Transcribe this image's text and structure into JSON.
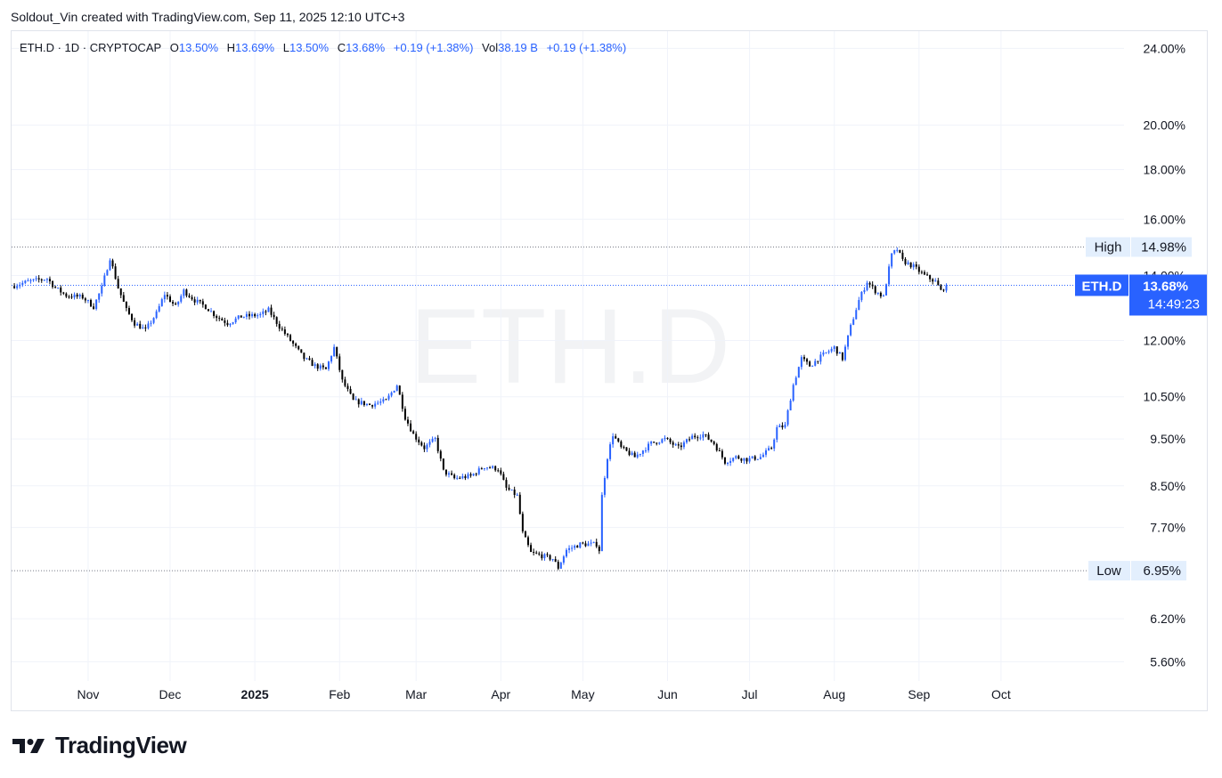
{
  "credit": "Soldout_Vin created with TradingView.com, Sep 11, 2025 12:10 UTC+3",
  "legend": {
    "symbol": "ETH.D · 1D · CRYPTOCAP",
    "open_label": "O",
    "open": "13.50%",
    "high_label": "H",
    "high": "13.69%",
    "low_label": "L",
    "low": "13.50%",
    "close_label": "C",
    "close": "13.68%",
    "change": "+0.19 (+1.38%)",
    "vol_label": "Vol",
    "vol": "38.19 B",
    "vol_change": "+0.19 (+1.38%)"
  },
  "watermark": "ETH.D",
  "brand": "TradingView",
  "colors": {
    "up": "#2962ff",
    "down": "#000000",
    "accent": "#2962ff",
    "grid": "#f0f3fa",
    "label_bg": "#e3effd"
  },
  "chart_data": {
    "type": "candlestick",
    "series_name": "ETH.D",
    "y_scale": "log",
    "y_ticks": [
      "24.00%",
      "20.00%",
      "18.00%",
      "16.00%",
      "14.00%",
      "12.00%",
      "10.50%",
      "9.50%",
      "8.50%",
      "7.70%",
      "6.20%",
      "5.60%"
    ],
    "y_tick_values": [
      24.0,
      20.0,
      18.0,
      16.0,
      14.0,
      12.0,
      10.5,
      9.5,
      8.5,
      7.7,
      6.2,
      5.6
    ],
    "x_ticks": [
      "Nov",
      "Dec",
      "2025",
      "Feb",
      "Mar",
      "Apr",
      "May",
      "Jun",
      "Jul",
      "Aug",
      "Sep",
      "Oct"
    ],
    "x_tick_dates": [
      "2024-11-01",
      "2024-12-01",
      "2025-01-01",
      "2025-02-01",
      "2025-03-01",
      "2025-04-01",
      "2025-05-01",
      "2025-06-01",
      "2025-07-01",
      "2025-08-01",
      "2025-09-01",
      "2025-10-01"
    ],
    "x_range": [
      "2024-10-04",
      "2025-11-15"
    ],
    "y_range": [
      5.35,
      25.0
    ],
    "high": {
      "label": "High",
      "value": 14.98,
      "text": "14.98%"
    },
    "low": {
      "label": "Low",
      "value": 6.95,
      "text": "6.95%"
    },
    "last": {
      "label": "ETH.D",
      "value": 13.68,
      "text": "13.68%",
      "countdown": "14:49:23"
    },
    "close_path": [
      [
        "2024-10-04",
        13.65
      ],
      [
        "2024-10-10",
        13.8
      ],
      [
        "2024-10-17",
        13.9
      ],
      [
        "2024-10-20",
        13.6
      ],
      [
        "2024-10-24",
        13.35
      ],
      [
        "2024-10-30",
        13.3
      ],
      [
        "2024-11-03",
        13.0
      ],
      [
        "2024-11-06",
        13.6
      ],
      [
        "2024-11-09",
        14.6
      ],
      [
        "2024-11-12",
        13.6
      ],
      [
        "2024-11-15",
        12.9
      ],
      [
        "2024-11-18",
        12.5
      ],
      [
        "2024-11-22",
        12.3
      ],
      [
        "2024-11-26",
        12.8
      ],
      [
        "2024-11-29",
        13.4
      ],
      [
        "2024-12-03",
        13.0
      ],
      [
        "2024-12-06",
        13.5
      ],
      [
        "2024-12-10",
        13.2
      ],
      [
        "2024-12-14",
        13.0
      ],
      [
        "2024-12-18",
        12.7
      ],
      [
        "2024-12-22",
        12.5
      ],
      [
        "2024-12-27",
        12.7
      ],
      [
        "2025-01-03",
        12.75
      ],
      [
        "2025-01-06",
        12.9
      ],
      [
        "2025-01-10",
        12.4
      ],
      [
        "2025-01-15",
        11.9
      ],
      [
        "2025-01-19",
        11.5
      ],
      [
        "2025-01-23",
        11.3
      ],
      [
        "2025-01-27",
        11.2
      ],
      [
        "2025-01-30",
        11.8
      ],
      [
        "2025-02-02",
        10.9
      ],
      [
        "2025-02-06",
        10.4
      ],
      [
        "2025-02-12",
        10.3
      ],
      [
        "2025-02-18",
        10.4
      ],
      [
        "2025-02-22",
        10.8
      ],
      [
        "2025-02-25",
        10.0
      ],
      [
        "2025-02-28",
        9.6
      ],
      [
        "2025-03-04",
        9.3
      ],
      [
        "2025-03-08",
        9.5
      ],
      [
        "2025-03-11",
        8.8
      ],
      [
        "2025-03-15",
        8.65
      ],
      [
        "2025-03-21",
        8.7
      ],
      [
        "2025-03-26",
        8.9
      ],
      [
        "2025-03-31",
        8.85
      ],
      [
        "2025-04-03",
        8.45
      ],
      [
        "2025-04-07",
        8.3
      ],
      [
        "2025-04-09",
        7.6
      ],
      [
        "2025-04-12",
        7.25
      ],
      [
        "2025-04-16",
        7.2
      ],
      [
        "2025-04-20",
        7.15
      ],
      [
        "2025-04-22",
        7.0
      ],
      [
        "2025-04-25",
        7.3
      ],
      [
        "2025-04-30",
        7.4
      ],
      [
        "2025-05-06",
        7.4
      ],
      [
        "2025-05-07",
        7.3
      ],
      [
        "2025-05-08",
        8.3
      ],
      [
        "2025-05-10",
        9.1
      ],
      [
        "2025-05-12",
        9.6
      ],
      [
        "2025-05-15",
        9.3
      ],
      [
        "2025-05-20",
        9.1
      ],
      [
        "2025-05-26",
        9.4
      ],
      [
        "2025-05-31",
        9.5
      ],
      [
        "2025-06-05",
        9.3
      ],
      [
        "2025-06-10",
        9.55
      ],
      [
        "2025-06-14",
        9.6
      ],
      [
        "2025-06-18",
        9.4
      ],
      [
        "2025-06-22",
        9.0
      ],
      [
        "2025-06-26",
        9.1
      ],
      [
        "2025-06-30",
        9.05
      ],
      [
        "2025-07-05",
        9.1
      ],
      [
        "2025-07-09",
        9.3
      ],
      [
        "2025-07-11",
        9.75
      ],
      [
        "2025-07-14",
        9.8
      ],
      [
        "2025-07-17",
        10.8
      ],
      [
        "2025-07-20",
        11.5
      ],
      [
        "2025-07-23",
        11.3
      ],
      [
        "2025-07-28",
        11.6
      ],
      [
        "2025-08-01",
        11.8
      ],
      [
        "2025-08-04",
        11.5
      ],
      [
        "2025-08-07",
        12.4
      ],
      [
        "2025-08-10",
        13.2
      ],
      [
        "2025-08-13",
        13.8
      ],
      [
        "2025-08-16",
        13.5
      ],
      [
        "2025-08-19",
        13.3
      ],
      [
        "2025-08-22",
        14.7
      ],
      [
        "2025-08-24",
        14.9
      ],
      [
        "2025-08-26",
        14.5
      ],
      [
        "2025-08-30",
        14.3
      ],
      [
        "2025-09-03",
        14.0
      ],
      [
        "2025-09-07",
        13.8
      ],
      [
        "2025-09-09",
        13.5
      ],
      [
        "2025-09-11",
        13.68
      ]
    ]
  }
}
